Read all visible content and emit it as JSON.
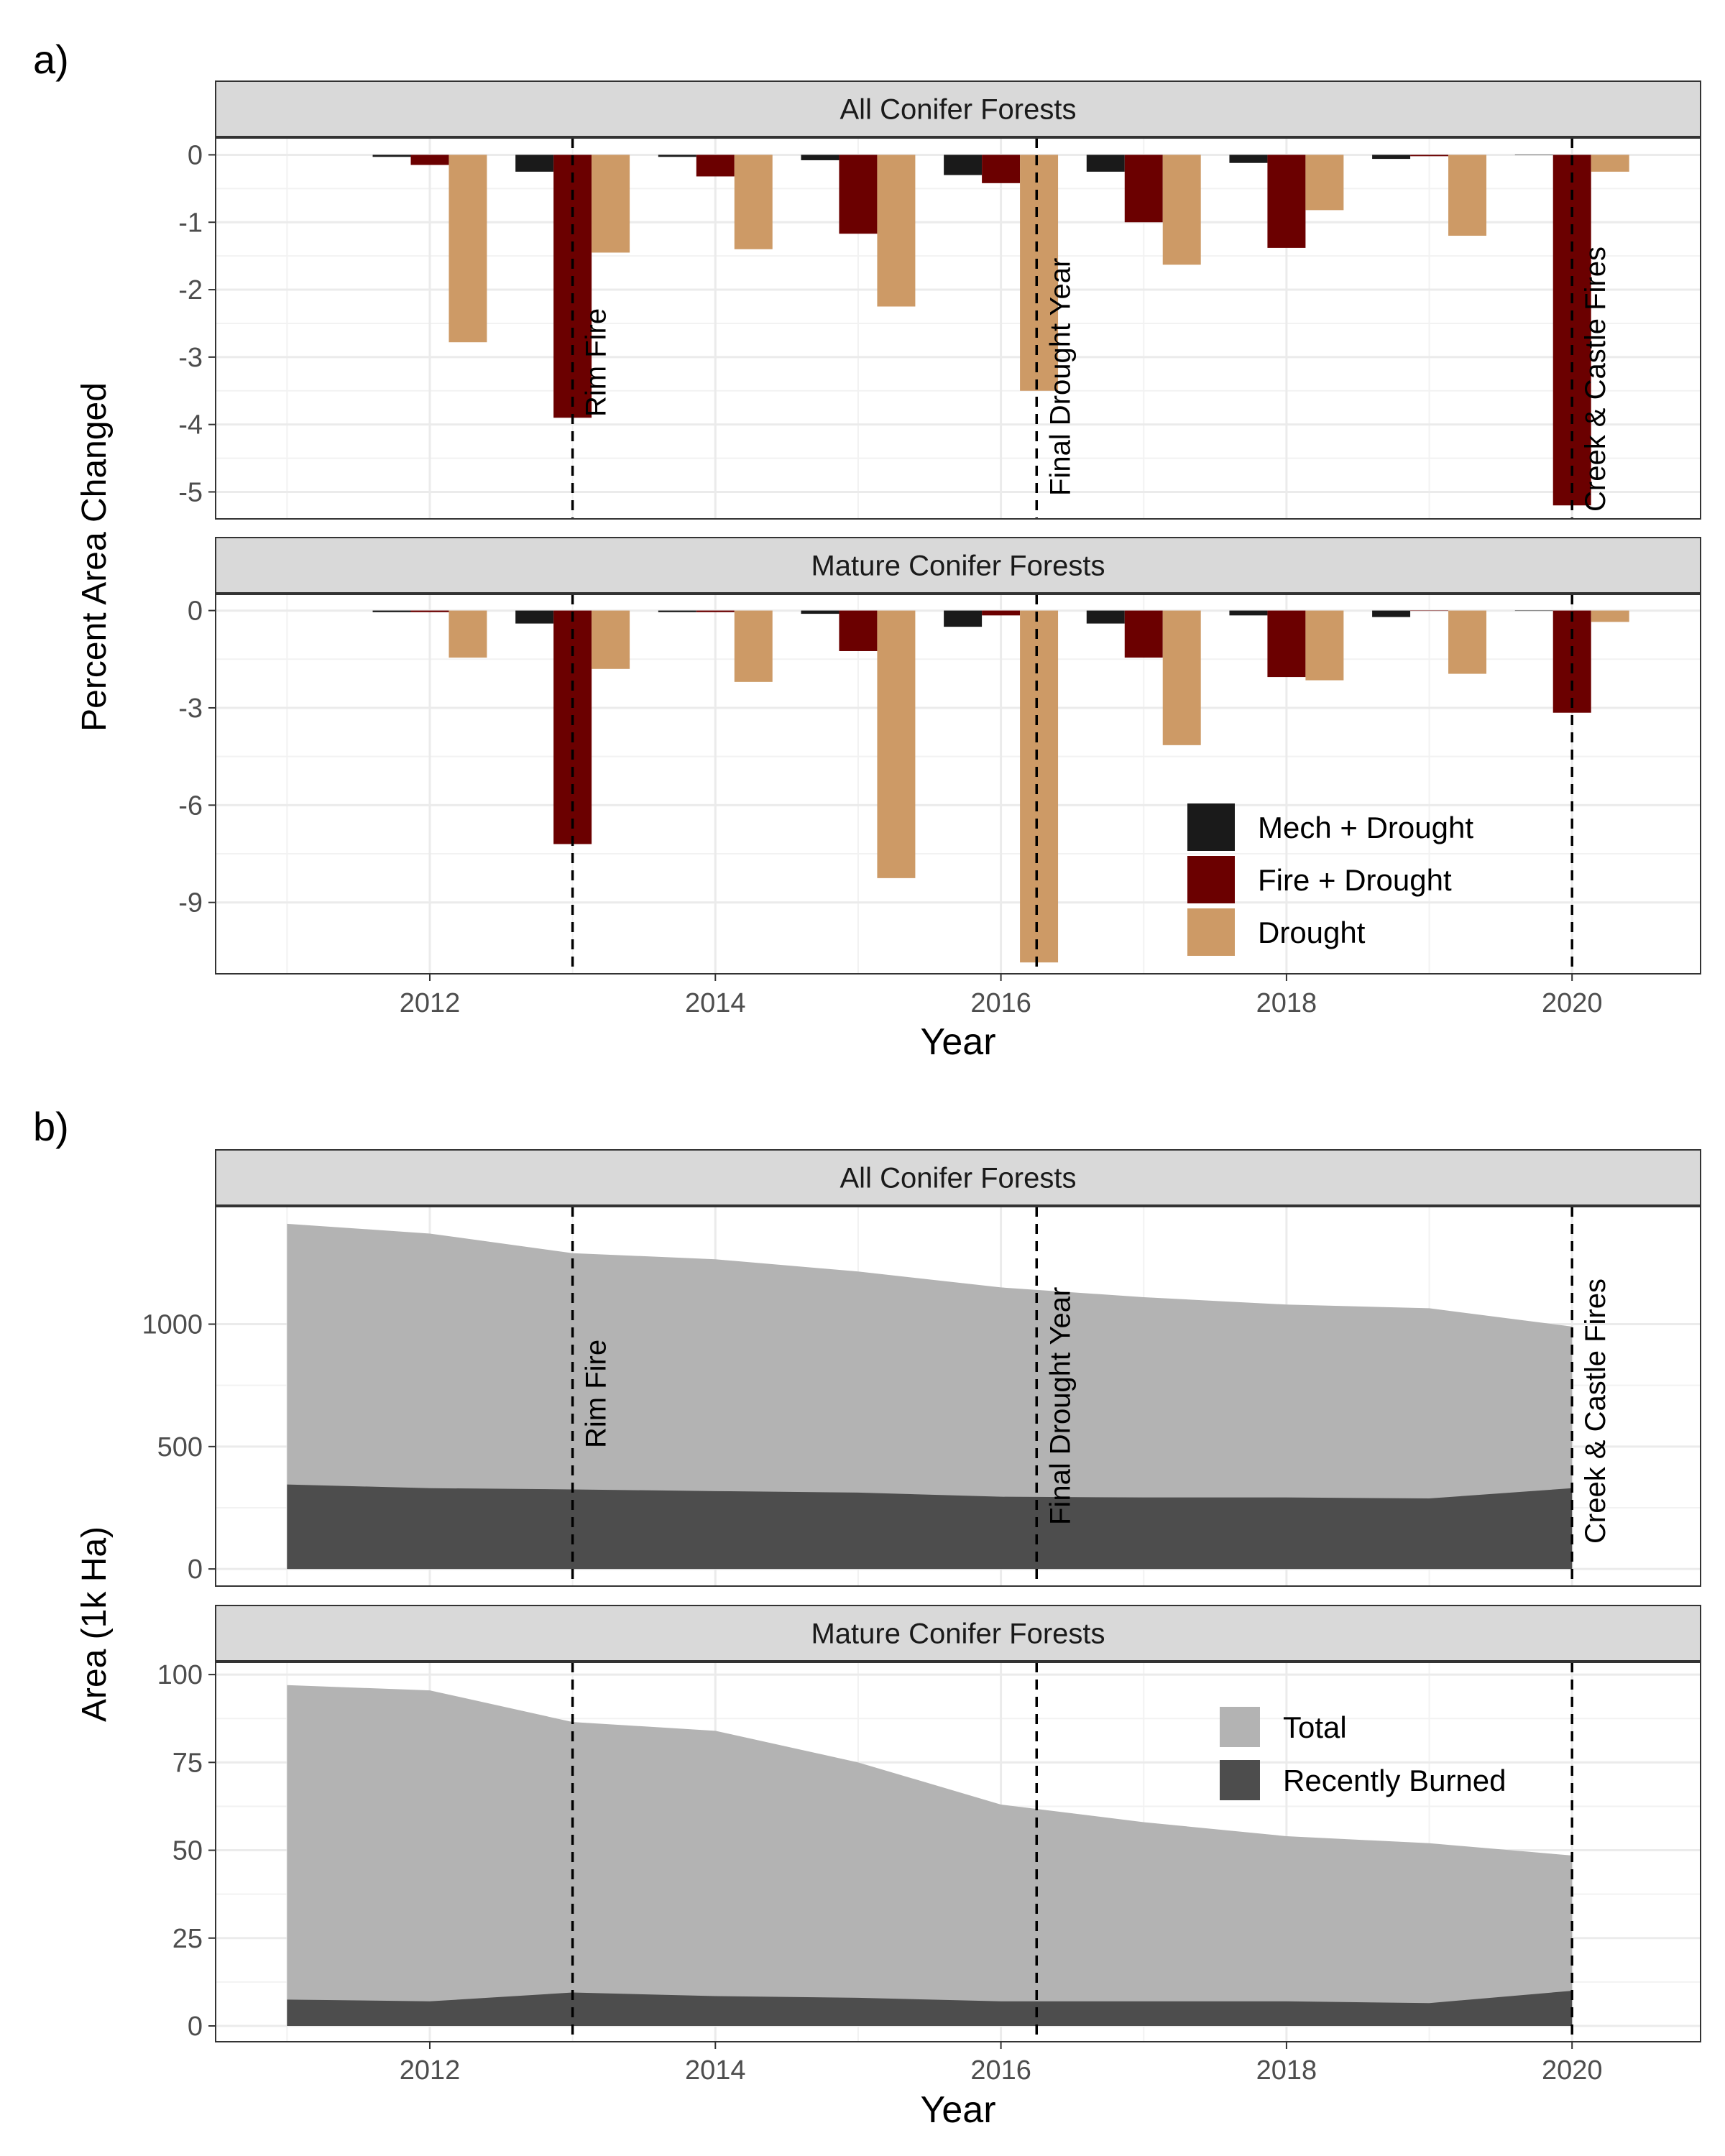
{
  "figure": {
    "panel_a_label": "a)",
    "panel_b_label": "b)",
    "panel_a_ylabel": "Percent Area Changed",
    "panel_b_ylabel": "Area (1k Ha)",
    "xlabel": "Year"
  },
  "chart_data": [
    {
      "type": "bar",
      "panel": "a",
      "x_ticks": [
        2012,
        2014,
        2016,
        2018,
        2020
      ],
      "xlim": [
        2010.5,
        2020.9
      ],
      "xlabel": "Year",
      "ylabel": "Percent Area Changed",
      "legend": {
        "placement": "inside bottom-right of lower facet"
      },
      "colors": {
        "Mech + Drought": "#1a1a1a",
        "Fire + Drought": "#6b0000",
        "Drought": "#cd9a66"
      },
      "series_names": [
        "Mech + Drought",
        "Fire + Drought",
        "Drought"
      ],
      "vlines": [
        {
          "x": 2013,
          "label": "Rim Fire"
        },
        {
          "x": 2016.25,
          "label": "Final Drought Year"
        },
        {
          "x": 2020,
          "label": "Creek & Castle Fires"
        }
      ],
      "grid": true,
      "facets": [
        {
          "title": "All Conifer Forests",
          "ylim": [
            -5.4,
            0.25
          ],
          "y_ticks": [
            0,
            -1,
            -2,
            -3,
            -4,
            -5
          ],
          "categories": [
            2012,
            2013,
            2014,
            2015,
            2016,
            2017,
            2018,
            2019,
            2020
          ],
          "series": [
            {
              "name": "Mech + Drought",
              "values": [
                -0.03,
                -0.25,
                -0.03,
                -0.08,
                -0.3,
                -0.25,
                -0.12,
                -0.06,
                0
              ]
            },
            {
              "name": "Fire + Drought",
              "values": [
                -0.15,
                -3.9,
                -0.32,
                -1.17,
                -0.42,
                -1.0,
                -1.38,
                -0.02,
                -5.2
              ]
            },
            {
              "name": "Drought",
              "values": [
                -2.78,
                -1.45,
                -1.4,
                -2.25,
                -3.5,
                -1.63,
                -0.82,
                -1.2,
                -0.25
              ]
            }
          ]
        },
        {
          "title": "Mature Conifer Forests",
          "ylim": [
            -11.2,
            0.5
          ],
          "y_ticks": [
            0,
            -3,
            -6,
            -9
          ],
          "categories": [
            2012,
            2013,
            2014,
            2015,
            2016,
            2017,
            2018,
            2019,
            2020
          ],
          "series": [
            {
              "name": "Mech + Drought",
              "values": [
                -0.05,
                -0.4,
                -0.05,
                -0.1,
                -0.5,
                -0.4,
                -0.15,
                -0.2,
                0
              ]
            },
            {
              "name": "Fire + Drought",
              "values": [
                -0.05,
                -7.2,
                -0.05,
                -1.25,
                -0.15,
                -1.45,
                -2.05,
                0,
                -3.15
              ]
            },
            {
              "name": "Drought",
              "values": [
                -1.45,
                -1.8,
                -2.2,
                -8.25,
                -10.85,
                -4.15,
                -2.15,
                -1.95,
                -0.35
              ]
            }
          ]
        }
      ]
    },
    {
      "type": "area",
      "panel": "b",
      "x": [
        2011,
        2012,
        2013,
        2014,
        2015,
        2016,
        2017,
        2018,
        2019,
        2020
      ],
      "x_ticks": [
        2012,
        2014,
        2016,
        2018,
        2020
      ],
      "xlim": [
        2010.5,
        2020.9
      ],
      "xlabel": "Year",
      "ylabel": "Area (1k Ha)",
      "legend": {
        "placement": "inside top-right of lower facet"
      },
      "colors": {
        "Total": "#b3b3b3",
        "Recently Burned": "#4d4d4d"
      },
      "series_names": [
        "Total",
        "Recently Burned"
      ],
      "vlines": [
        {
          "x": 2013,
          "label": "Rim Fire"
        },
        {
          "x": 2016.25,
          "label": "Final Drought Year"
        },
        {
          "x": 2020,
          "label": "Creek & Castle Fires"
        }
      ],
      "grid": true,
      "facets": [
        {
          "title": "All Conifer Forests",
          "ylim": [
            -70,
            1480
          ],
          "y_ticks": [
            0,
            500,
            1000
          ],
          "series": [
            {
              "name": "Total",
              "values": [
                1410,
                1370,
                1290,
                1265,
                1215,
                1150,
                1110,
                1080,
                1065,
                990
              ]
            },
            {
              "name": "Recently Burned",
              "values": [
                345,
                330,
                325,
                318,
                312,
                295,
                292,
                292,
                288,
                330
              ]
            }
          ]
        },
        {
          "title": "Mature Conifer Forests",
          "ylim": [
            -4.5,
            103.5
          ],
          "y_ticks": [
            0,
            25,
            50,
            75,
            100
          ],
          "series": [
            {
              "name": "Total",
              "values": [
                97,
                95.5,
                86.5,
                84,
                75,
                63,
                58,
                54,
                52,
                48.5
              ]
            },
            {
              "name": "Recently Burned",
              "values": [
                7.5,
                7,
                9.5,
                8.5,
                8,
                7,
                7,
                7,
                6.5,
                10
              ]
            }
          ]
        }
      ]
    }
  ]
}
